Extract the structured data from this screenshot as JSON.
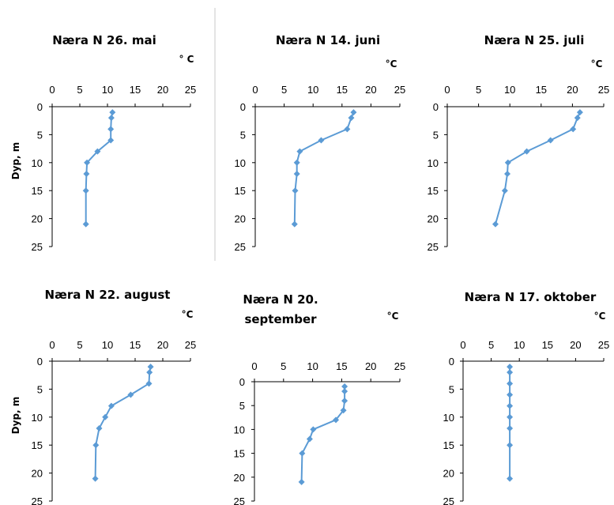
{
  "chart_data": [
    {
      "type": "line",
      "title_lines": [
        "Næra N  26. mai"
      ],
      "unit": "° C",
      "xlabel": "",
      "ylabel": "Dyp, m",
      "xlim": [
        0,
        25
      ],
      "ylim": [
        0,
        25
      ],
      "y_inverted": true,
      "x_ticks": [
        "0",
        "5",
        "10",
        "15",
        "20",
        "25"
      ],
      "y_ticks": [
        "0",
        "5",
        "10",
        "15",
        "20",
        "25"
      ],
      "series": [
        {
          "points": [
            [
              10.9,
              1
            ],
            [
              10.7,
              2
            ],
            [
              10.6,
              4
            ],
            [
              10.6,
              6
            ],
            [
              8.2,
              8
            ],
            [
              6.3,
              10
            ],
            [
              6.2,
              12
            ],
            [
              6.1,
              15
            ],
            [
              6.1,
              21
            ]
          ]
        }
      ]
    },
    {
      "type": "line",
      "title_lines": [
        "Næra N  14. juni"
      ],
      "unit": "°C",
      "xlabel": "",
      "ylabel": "",
      "xlim": [
        0,
        25
      ],
      "ylim": [
        0,
        25
      ],
      "y_inverted": true,
      "x_ticks": [
        "0",
        "5",
        "10",
        "15",
        "20",
        "25"
      ],
      "y_ticks": [
        "0",
        "5",
        "10",
        "15",
        "20",
        "25"
      ],
      "series": [
        {
          "points": [
            [
              17.0,
              1
            ],
            [
              16.6,
              2
            ],
            [
              15.9,
              4
            ],
            [
              11.4,
              6
            ],
            [
              7.7,
              8
            ],
            [
              7.2,
              10
            ],
            [
              7.2,
              12
            ],
            [
              6.9,
              15
            ],
            [
              6.8,
              21
            ]
          ]
        }
      ]
    },
    {
      "type": "line",
      "title_lines": [
        "Næra N  25. juli"
      ],
      "unit": "°C",
      "xlabel": "",
      "ylabel": "",
      "xlim": [
        0,
        25
      ],
      "ylim": [
        0,
        25
      ],
      "y_inverted": true,
      "x_ticks": [
        "0",
        "5",
        "10",
        "15",
        "20",
        "25"
      ],
      "y_ticks": [
        "0",
        "5",
        "10",
        "15",
        "20",
        "25"
      ],
      "series": [
        {
          "points": [
            [
              21.2,
              1
            ],
            [
              20.8,
              2
            ],
            [
              20.1,
              4
            ],
            [
              16.5,
              6
            ],
            [
              12.7,
              8
            ],
            [
              9.7,
              10
            ],
            [
              9.6,
              12
            ],
            [
              9.2,
              15
            ],
            [
              7.7,
              21
            ]
          ]
        }
      ]
    },
    {
      "type": "line",
      "title_lines": [
        "Næra N  22. august"
      ],
      "unit": "°C",
      "xlabel": "",
      "ylabel": "Dyp, m",
      "xlim": [
        0,
        25
      ],
      "ylim": [
        0,
        25
      ],
      "y_inverted": true,
      "x_ticks": [
        "0",
        "5",
        "10",
        "15",
        "20",
        "25"
      ],
      "y_ticks": [
        "0",
        "5",
        "10",
        "15",
        "20",
        "25"
      ],
      "series": [
        {
          "points": [
            [
              17.8,
              1
            ],
            [
              17.6,
              2
            ],
            [
              17.5,
              4
            ],
            [
              14.2,
              6
            ],
            [
              10.7,
              8
            ],
            [
              9.6,
              10
            ],
            [
              8.5,
              12
            ],
            [
              7.9,
              15
            ],
            [
              7.8,
              21
            ]
          ]
        }
      ]
    },
    {
      "type": "line",
      "title_lines": [
        "Næra N  20.",
        "september"
      ],
      "unit": "°C",
      "xlabel": "",
      "ylabel": "",
      "xlim": [
        0,
        25
      ],
      "ylim": [
        0,
        25
      ],
      "y_inverted": true,
      "x_ticks": [
        "0",
        "5",
        "10",
        "15",
        "20",
        "25"
      ],
      "y_ticks": [
        "0",
        "5",
        "10",
        "15",
        "20",
        "25"
      ],
      "series": [
        {
          "points": [
            [
              15.5,
              1
            ],
            [
              15.5,
              2
            ],
            [
              15.5,
              4
            ],
            [
              15.3,
              6
            ],
            [
              14.0,
              8
            ],
            [
              10.1,
              10
            ],
            [
              9.5,
              12
            ],
            [
              8.2,
              15
            ],
            [
              8.1,
              21
            ]
          ]
        }
      ]
    },
    {
      "type": "line",
      "title_lines": [
        "Næra N  17. oktober"
      ],
      "unit": "°C",
      "xlabel": "",
      "ylabel": "",
      "xlim": [
        0,
        25
      ],
      "ylim": [
        0,
        25
      ],
      "y_inverted": true,
      "x_ticks": [
        "0",
        "5",
        "10",
        "15",
        "20",
        "25"
      ],
      "y_ticks": [
        "0",
        "5",
        "10",
        "15",
        "20",
        "25"
      ],
      "series": [
        {
          "points": [
            [
              8.3,
              1
            ],
            [
              8.3,
              2
            ],
            [
              8.3,
              4
            ],
            [
              8.3,
              6
            ],
            [
              8.3,
              8
            ],
            [
              8.3,
              10
            ],
            [
              8.3,
              12
            ],
            [
              8.3,
              15
            ],
            [
              8.3,
              21
            ]
          ]
        }
      ]
    }
  ]
}
